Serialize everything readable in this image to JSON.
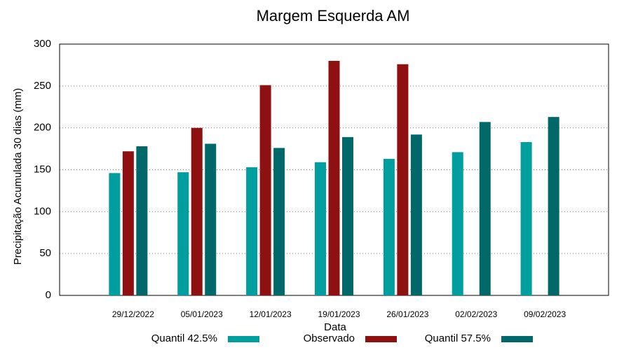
{
  "chart_data": {
    "type": "bar",
    "title": "Margem Esquerda AM",
    "x_label": "Data",
    "y_label": "Precipitação Acumulada 30 dias (mm)",
    "categories": [
      "29/12/2022",
      "05/01/2023",
      "12/01/2023",
      "19/01/2023",
      "26/01/2023",
      "02/02/2023",
      "09/02/2023"
    ],
    "series": [
      {
        "name": "Quantil 42.5%",
        "color": "#009e9e",
        "values": [
          146,
          147,
          153,
          159,
          163,
          171,
          183
        ]
      },
      {
        "name": "Observado",
        "color": "#8f1010",
        "values": [
          172,
          200,
          251,
          280,
          276,
          null,
          null
        ]
      },
      {
        "name": "Quantil 57.5%",
        "color": "#006868",
        "values": [
          178,
          181,
          176,
          189,
          192,
          207,
          213
        ]
      }
    ],
    "ylim": [
      0,
      300
    ],
    "yticks": [
      0,
      50,
      100,
      150,
      200,
      250,
      300
    ],
    "grid": true,
    "legend": "bottom"
  }
}
